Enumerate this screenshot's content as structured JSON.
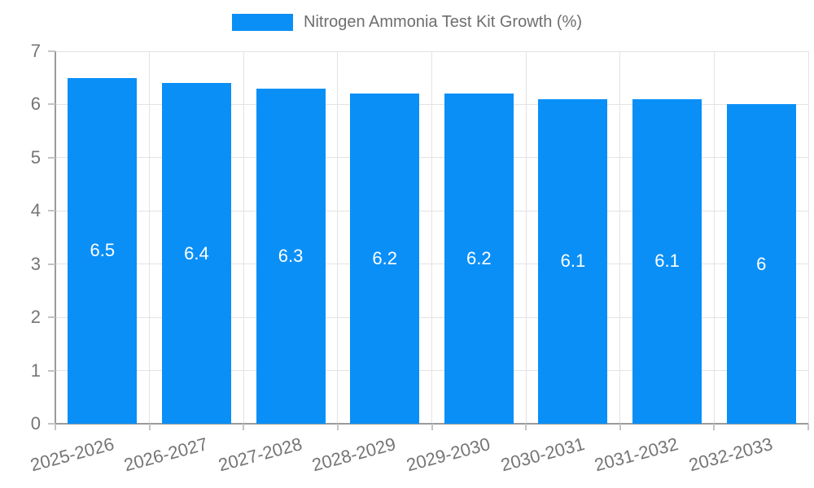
{
  "chart_data": {
    "type": "bar",
    "title": "Nitrogen Ammonia Test Kit Growth (%)",
    "categories": [
      "2025-2026",
      "2026-2027",
      "2027-2028",
      "2028-2029",
      "2029-2030",
      "2030-2031",
      "2031-2032",
      "2032-2033"
    ],
    "values": [
      6.5,
      6.4,
      6.3,
      6.2,
      6.2,
      6.1,
      6.1,
      6
    ],
    "value_labels": [
      "6.5",
      "6.4",
      "6.3",
      "6.2",
      "6.2",
      "6.1",
      "6.1",
      "6"
    ],
    "xlabel": "",
    "ylabel": "",
    "ylim": [
      0,
      7
    ],
    "yticks": [
      0,
      1,
      2,
      3,
      4,
      5,
      6,
      7
    ],
    "grid": true,
    "legend_position": "top",
    "colors": {
      "bar": "#0a8ff7",
      "grid": "#e3e3e3",
      "axis": "#9a9a9a",
      "tick": "#c4c4c4",
      "axis_label": "#757575",
      "title": "#6e6e6e",
      "value_label": "#ffffff",
      "background": "#ffffff"
    }
  }
}
